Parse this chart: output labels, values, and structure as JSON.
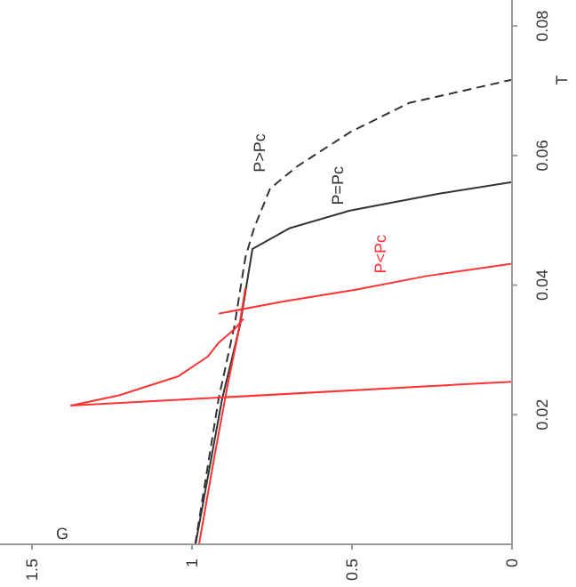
{
  "chart_data": {
    "type": "line",
    "xlabel": "G",
    "ylabel": "T",
    "xlim": [
      1.6,
      0
    ],
    "xticks": [
      1.5,
      1,
      0.5,
      0
    ],
    "ylim": [
      0,
      0.084
    ],
    "yticks": [
      0.02,
      0.04,
      0.06,
      0.08
    ],
    "grid": false,
    "marker": "none",
    "series": [
      {
        "name": "P>Pc",
        "color": "#333333",
        "line_style": "dashed",
        "x": [
          0.99,
          0.917,
          0.867,
          0.833,
          0.806,
          0.756,
          0.672,
          0.506,
          0.322,
          0
        ],
        "values": [
          0,
          0.0224,
          0.0338,
          0.0443,
          0.0488,
          0.0549,
          0.0583,
          0.0636,
          0.0681,
          0.0717
        ]
      },
      {
        "name": "P=Pc",
        "color": "#333333",
        "line_style": "solid",
        "x": [
          0.989,
          0.906,
          0.85,
          0.811,
          0.694,
          0.506,
          0.228,
          0
        ],
        "values": [
          0,
          0.0224,
          0.0338,
          0.0456,
          0.0488,
          0.0515,
          0.0541,
          0.0559
        ]
      },
      {
        "name": "P<Pc",
        "color": "#ff3333",
        "line_style": "solid",
        "x": [
          0.917,
          0.711,
          0.489,
          0.267,
          0
        ],
        "values": [
          0.0356,
          0.0375,
          0.0393,
          0.0414,
          0.0433
        ]
      },
      {
        "color": "#ff3333",
        "line_style": "solid",
        "x": [
          0.978,
          0.933,
          0.889,
          0.856,
          0.833
        ],
        "values": [
          0,
          0.0127,
          0.0245,
          0.0325,
          0.0396
        ]
      },
      {
        "color": "#ff3333",
        "line_style": "solid",
        "x": [
          0.839,
          0.867,
          0.917,
          0.95,
          1.044,
          1.228,
          1.378,
          0
        ],
        "values": [
          0.0348,
          0.0332,
          0.0311,
          0.029,
          0.0259,
          0.023,
          0.0214,
          0.0251
        ]
      }
    ]
  }
}
